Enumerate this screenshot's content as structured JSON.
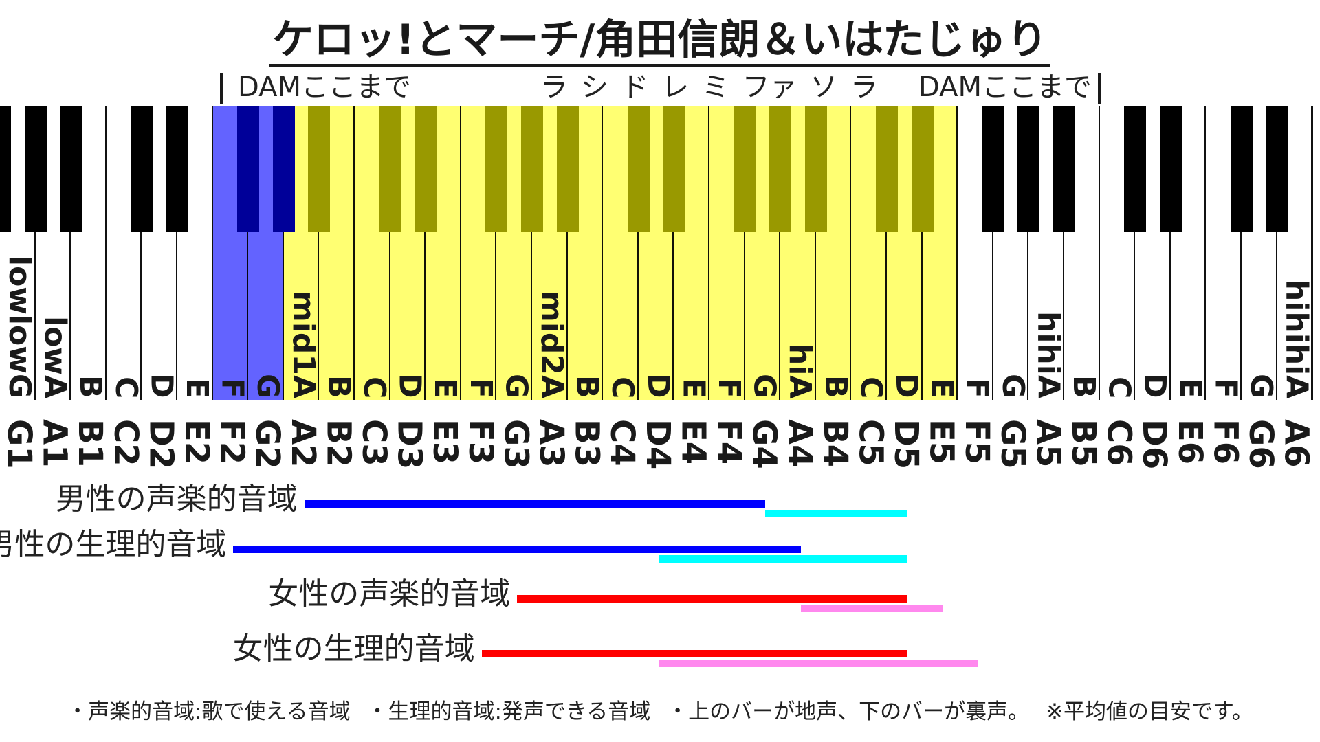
{
  "title": "ケロッ!とマーチ/角田信朗＆いはたじゅり",
  "dam_left_label": "DAMここまで",
  "dam_right_label": "DAMここまで",
  "scale_label": "ラ シ ド レ ミ ファ ソ ラ",
  "colors": {
    "range_blue": "#5555ff",
    "range_yellow": "#ffff66",
    "male_chest": "#0000ff",
    "male_falsetto": "#00ffff",
    "female_chest": "#ff0000",
    "female_falsetto": "#ff88ee"
  },
  "keyboard": {
    "white_keys": [
      {
        "letter": "lowlowG",
        "note": "G1"
      },
      {
        "letter": "lowA",
        "note": "A1"
      },
      {
        "letter": "B",
        "note": "B1"
      },
      {
        "letter": "C",
        "note": "C2"
      },
      {
        "letter": "D",
        "note": "D2"
      },
      {
        "letter": "E",
        "note": "E2"
      },
      {
        "letter": "F",
        "note": "F2"
      },
      {
        "letter": "G",
        "note": "G2"
      },
      {
        "letter": "mid1A",
        "note": "A2"
      },
      {
        "letter": "B",
        "note": "B2"
      },
      {
        "letter": "C",
        "note": "C3"
      },
      {
        "letter": "D",
        "note": "D3"
      },
      {
        "letter": "E",
        "note": "E3"
      },
      {
        "letter": "F",
        "note": "F3"
      },
      {
        "letter": "G",
        "note": "G3"
      },
      {
        "letter": "mid2A",
        "note": "A3"
      },
      {
        "letter": "B",
        "note": "B3"
      },
      {
        "letter": "C",
        "note": "C4"
      },
      {
        "letter": "D",
        "note": "D4"
      },
      {
        "letter": "E",
        "note": "E4"
      },
      {
        "letter": "F",
        "note": "F4"
      },
      {
        "letter": "G",
        "note": "G4"
      },
      {
        "letter": "hiA",
        "note": "A4"
      },
      {
        "letter": "B",
        "note": "B4"
      },
      {
        "letter": "C",
        "note": "C5"
      },
      {
        "letter": "D",
        "note": "D5"
      },
      {
        "letter": "E",
        "note": "E5"
      },
      {
        "letter": "F",
        "note": "F5"
      },
      {
        "letter": "G",
        "note": "G5"
      },
      {
        "letter": "hihiA",
        "note": "A5"
      },
      {
        "letter": "B",
        "note": "B5"
      },
      {
        "letter": "C",
        "note": "C6"
      },
      {
        "letter": "D",
        "note": "D6"
      },
      {
        "letter": "E",
        "note": "E6"
      },
      {
        "letter": "F",
        "note": "F6"
      },
      {
        "letter": "G",
        "note": "G6"
      },
      {
        "letter": "hihihiA",
        "note": "A6"
      }
    ],
    "dam_range": {
      "from": "F2",
      "to": "E5"
    },
    "song_range": {
      "from": "A2",
      "to": "E5"
    }
  },
  "ranges": [
    {
      "label": "男性の声楽的音域",
      "chest": {
        "from": "A2",
        "to": "G4"
      },
      "falsetto": {
        "from": "G4",
        "to": "D5"
      },
      "chest_color": "#0000ff",
      "falsetto_color": "#00ffff"
    },
    {
      "label": "男性の生理的音域",
      "chest": {
        "from": "F2",
        "to": "A4"
      },
      "falsetto": {
        "from": "D4",
        "to": "D5"
      },
      "chest_color": "#0000ff",
      "falsetto_color": "#00ffff"
    },
    {
      "label": "女性の声楽的音域",
      "chest": {
        "from": "G3",
        "to": "D5"
      },
      "falsetto": {
        "from": "A4",
        "to": "E5"
      },
      "chest_color": "#ff0000",
      "falsetto_color": "#ff88ee"
    },
    {
      "label": "女性の生理的音域",
      "chest": {
        "from": "F3",
        "to": "D5"
      },
      "falsetto": {
        "from": "D4",
        "to": "F5"
      },
      "chest_color": "#ff0000",
      "falsetto_color": "#ff88ee"
    }
  ],
  "footnote": "・声楽的音域:歌で使える音域 ・生理的音域:発声できる音域 ・上のバーが地声、下のバーが裏声。 ※平均値の目安です。"
}
